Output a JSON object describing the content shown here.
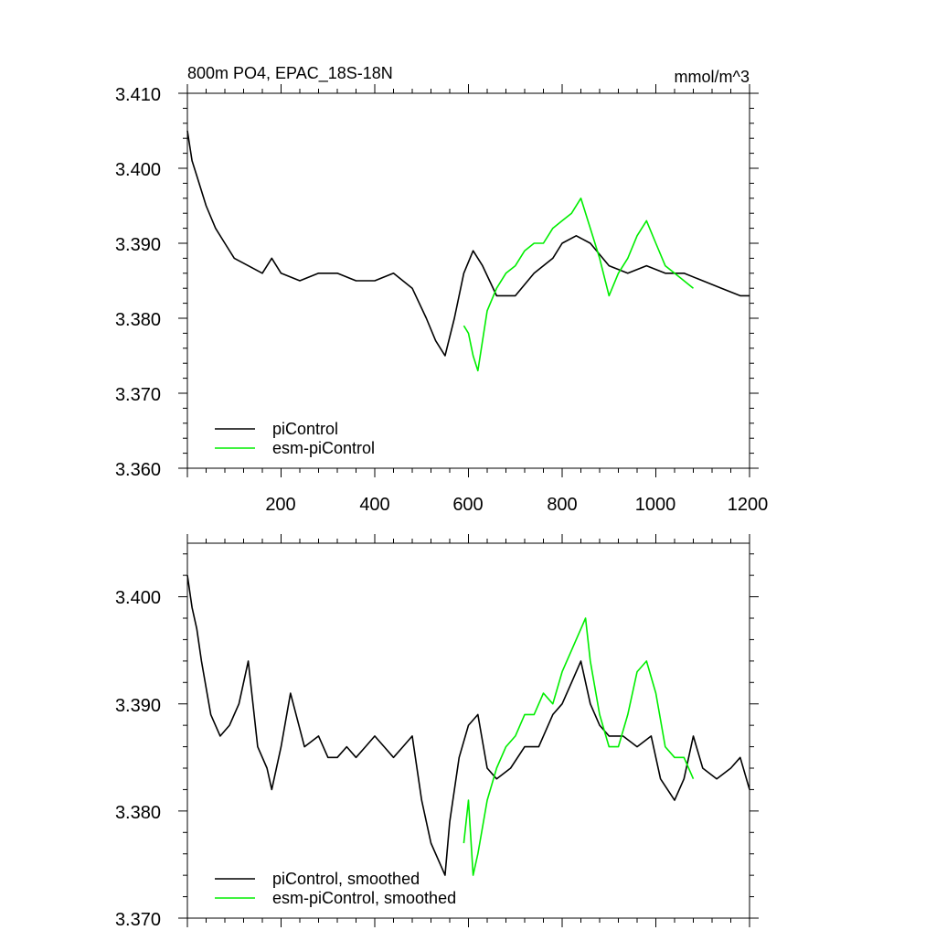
{
  "chart_data": [
    {
      "type": "line",
      "title": "800m PO4, EPAC_18S-18N",
      "units": "mmol/m^3",
      "xlim": [
        0,
        1200
      ],
      "ylim": [
        3.36,
        3.41
      ],
      "x_ticks": [
        "200",
        "400",
        "600",
        "800",
        "1000",
        "1200"
      ],
      "y_ticks": [
        "3.360",
        "3.370",
        "3.380",
        "3.390",
        "3.400",
        "3.410"
      ],
      "series": [
        {
          "name": "piControl",
          "color": "#000000",
          "x": [
            0,
            10,
            20,
            40,
            60,
            80,
            100,
            130,
            160,
            180,
            200,
            240,
            280,
            320,
            360,
            400,
            440,
            480,
            510,
            530,
            550,
            570,
            590,
            610,
            630,
            660,
            700,
            740,
            780,
            800,
            830,
            860,
            900,
            940,
            980,
            1020,
            1060,
            1100,
            1140,
            1180,
            1200
          ],
          "y": [
            3.405,
            3.401,
            3.399,
            3.395,
            3.392,
            3.39,
            3.388,
            3.387,
            3.386,
            3.388,
            3.386,
            3.385,
            3.386,
            3.386,
            3.385,
            3.385,
            3.386,
            3.384,
            3.38,
            3.377,
            3.375,
            3.38,
            3.386,
            3.389,
            3.387,
            3.383,
            3.383,
            3.386,
            3.388,
            3.39,
            3.391,
            3.39,
            3.387,
            3.386,
            3.387,
            3.386,
            3.386,
            3.385,
            3.384,
            3.383,
            3.383
          ]
        },
        {
          "name": "esm-piControl",
          "color": "#00ee00",
          "x": [
            590,
            600,
            610,
            620,
            640,
            660,
            680,
            700,
            720,
            740,
            760,
            780,
            800,
            820,
            840,
            860,
            880,
            900,
            920,
            940,
            960,
            980,
            1000,
            1020,
            1040,
            1060,
            1080
          ],
          "y": [
            3.379,
            3.378,
            3.375,
            3.373,
            3.381,
            3.384,
            3.386,
            3.387,
            3.389,
            3.39,
            3.39,
            3.392,
            3.393,
            3.394,
            3.396,
            3.392,
            3.388,
            3.383,
            3.386,
            3.388,
            3.391,
            3.393,
            3.39,
            3.387,
            3.386,
            3.385,
            3.384
          ]
        }
      ]
    },
    {
      "type": "line",
      "xlim": [
        0,
        1200
      ],
      "ylim": [
        3.37,
        3.405
      ],
      "y_ticks": [
        "3.370",
        "3.380",
        "3.390",
        "3.400"
      ],
      "series": [
        {
          "name": "piControl, smoothed",
          "color": "#000000",
          "x": [
            0,
            10,
            20,
            30,
            50,
            70,
            90,
            110,
            130,
            150,
            170,
            180,
            200,
            220,
            250,
            280,
            300,
            320,
            340,
            360,
            380,
            400,
            420,
            440,
            460,
            480,
            500,
            520,
            540,
            550,
            560,
            580,
            600,
            620,
            640,
            660,
            690,
            720,
            750,
            780,
            800,
            820,
            840,
            860,
            880,
            900,
            930,
            960,
            990,
            1010,
            1040,
            1060,
            1080,
            1100,
            1130,
            1160,
            1180,
            1200
          ],
          "y": [
            3.402,
            3.399,
            3.397,
            3.394,
            3.389,
            3.387,
            3.388,
            3.39,
            3.394,
            3.386,
            3.384,
            3.382,
            3.386,
            3.391,
            3.386,
            3.387,
            3.385,
            3.385,
            3.386,
            3.385,
            3.386,
            3.387,
            3.386,
            3.385,
            3.386,
            3.387,
            3.381,
            3.377,
            3.375,
            3.374,
            3.379,
            3.385,
            3.388,
            3.389,
            3.384,
            3.383,
            3.384,
            3.386,
            3.386,
            3.389,
            3.39,
            3.392,
            3.394,
            3.39,
            3.388,
            3.387,
            3.387,
            3.386,
            3.387,
            3.383,
            3.381,
            3.383,
            3.387,
            3.384,
            3.383,
            3.384,
            3.385,
            3.382
          ]
        },
        {
          "name": "esm-piControl, smoothed",
          "color": "#00ee00",
          "x": [
            590,
            600,
            610,
            620,
            640,
            660,
            680,
            700,
            720,
            740,
            760,
            780,
            800,
            820,
            840,
            850,
            860,
            880,
            900,
            920,
            940,
            960,
            980,
            1000,
            1020,
            1040,
            1060,
            1080
          ],
          "y": [
            3.377,
            3.381,
            3.374,
            3.376,
            3.381,
            3.384,
            3.386,
            3.387,
            3.389,
            3.389,
            3.391,
            3.39,
            3.393,
            3.395,
            3.397,
            3.398,
            3.394,
            3.389,
            3.386,
            3.386,
            3.389,
            3.393,
            3.394,
            3.391,
            3.386,
            3.385,
            3.385,
            3.383
          ]
        }
      ]
    }
  ]
}
